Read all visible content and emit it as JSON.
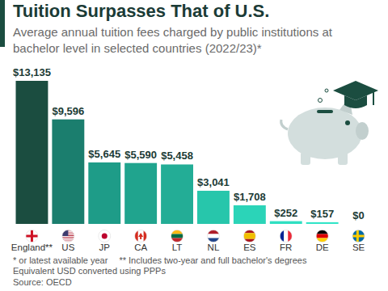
{
  "chart_data": {
    "type": "bar",
    "title": "Tuition Surpasses That of U.S.",
    "subtitle": "Average annual tuition fees charged by public institutions at bachelor level in selected countries (2022/23)*",
    "categories": [
      "England**",
      "US",
      "JP",
      "CA",
      "LT",
      "NL",
      "ES",
      "FR",
      "DE",
      "SE"
    ],
    "values": [
      13135,
      9596,
      5645,
      5590,
      5458,
      3041,
      1708,
      252,
      157,
      0
    ],
    "value_labels": [
      "$13,135",
      "$9,596",
      "$5,645",
      "$5,590",
      "$5,458",
      "$3,041",
      "$1,708",
      "$252",
      "$157",
      "$0"
    ],
    "colors": [
      "#1b4d40",
      "#1b7e6e",
      "#1e9c88",
      "#20a48e",
      "#23ad96",
      "#27c6ab",
      "#2bd4b8",
      "#30dfc2",
      "#33e5c8",
      "#36ebce"
    ],
    "ylim": [
      0,
      13135
    ],
    "data_labels": true,
    "tick_labels": "x",
    "notes": [
      "* or latest available year",
      "** Includes two-year and full bachelor's degrees",
      "Equivalent USD converted using PPPs"
    ],
    "source": "Source: OECD"
  }
}
